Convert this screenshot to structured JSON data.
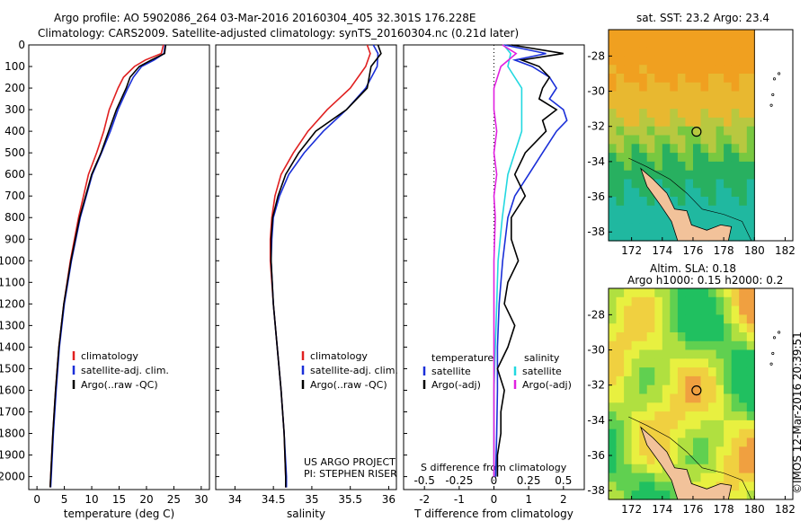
{
  "header": {
    "title_line1": "Argo profile: AO 5902086_264 03-Mar-2016 20160304_405 32.301S 176.228E",
    "title_line2": "Climatology: CARS2009. Satellite-adjusted climatology: synTS_20160304.nc (0.21d later)"
  },
  "credit": "©IMOS 12-Mar-2016 20:39:51",
  "project": {
    "line1": "US ARGO PROJECT",
    "line2": "PI: STEPHEN RISER"
  },
  "colors": {
    "climatology": "#e02020",
    "satellite": "#1a2fd8",
    "argo": "#000000",
    "sat_s": "#22d8e0",
    "argo_s": "#e020e0"
  },
  "chart_data": [
    {
      "id": "temperature",
      "type": "line",
      "xlabel": "temperature (deg C)",
      "ylabel": "",
      "xlim": [
        -1.5,
        31.5
      ],
      "ylim": [
        2060,
        0
      ],
      "xticks": [
        0,
        5,
        10,
        15,
        20,
        25,
        30
      ],
      "yticks": [
        0,
        100,
        200,
        300,
        400,
        500,
        600,
        700,
        800,
        900,
        1000,
        1100,
        1200,
        1300,
        1400,
        1500,
        1600,
        1700,
        1800,
        1900,
        2000
      ],
      "legend": [
        "climatology",
        "satellite-adj. clim.",
        "Argo(..raw -QC)"
      ],
      "series": [
        {
          "name": "climatology",
          "color": "#e02020",
          "y": [
            0,
            40,
            70,
            100,
            150,
            200,
            300,
            400,
            500,
            600,
            800,
            1000,
            1200,
            1400,
            1600,
            1800,
            2000,
            2050
          ],
          "x": [
            23.1,
            22.7,
            19.8,
            17.8,
            15.8,
            14.8,
            13.2,
            12.2,
            10.9,
            9.4,
            7.6,
            6.1,
            4.9,
            4.0,
            3.4,
            2.9,
            2.5,
            2.4
          ]
        },
        {
          "name": "satellite-adj. clim.",
          "color": "#1a2fd8",
          "y": [
            0,
            40,
            70,
            100,
            150,
            200,
            300,
            400,
            500,
            600,
            800,
            1000,
            1200,
            1400,
            1600,
            1800,
            2000,
            2050
          ],
          "x": [
            23.4,
            23.2,
            21.4,
            19.1,
            17.6,
            16.6,
            14.8,
            13.4,
            11.8,
            10.1,
            7.9,
            6.3,
            5.0,
            4.1,
            3.5,
            3.0,
            2.6,
            2.5
          ]
        },
        {
          "name": "Argo(..raw -QC)",
          "color": "#000000",
          "y": [
            0,
            40,
            70,
            100,
            150,
            200,
            300,
            400,
            500,
            600,
            800,
            1000,
            1200,
            1400,
            1600,
            1800,
            2000,
            2050
          ],
          "x": [
            23.5,
            23.3,
            20.9,
            18.7,
            17.0,
            16.3,
            14.5,
            13.1,
            11.7,
            10.0,
            7.8,
            6.2,
            4.9,
            4.0,
            3.4,
            2.9,
            2.5,
            2.4
          ]
        }
      ]
    },
    {
      "id": "salinity",
      "type": "line",
      "xlabel": "salinity",
      "ylabel": "",
      "xlim": [
        33.75,
        36.1
      ],
      "ylim": [
        2060,
        0
      ],
      "xticks": [
        34,
        34.5,
        35,
        35.5,
        36
      ],
      "xtick_labels": [
        "34",
        "34.5",
        "35",
        "35.5",
        "36"
      ],
      "legend": [
        "climatology",
        "satellite-adj. clim.",
        "Argo(..raw -QC)"
      ],
      "series": [
        {
          "name": "climatology",
          "color": "#e02020",
          "y": [
            0,
            40,
            100,
            200,
            300,
            400,
            500,
            600,
            700,
            800,
            900,
            1000,
            1200,
            1400,
            1600,
            1800,
            2000,
            2050
          ],
          "x": [
            35.72,
            35.76,
            35.7,
            35.5,
            35.2,
            34.95,
            34.76,
            34.6,
            34.52,
            34.48,
            34.46,
            34.46,
            34.5,
            34.55,
            34.6,
            34.64,
            34.66,
            34.66
          ]
        },
        {
          "name": "satellite-adj. clim.",
          "color": "#1a2fd8",
          "y": [
            0,
            40,
            100,
            200,
            300,
            400,
            500,
            600,
            700,
            800,
            900,
            1000,
            1200,
            1400,
            1600,
            1800,
            2000,
            2050
          ],
          "x": [
            35.8,
            35.86,
            35.85,
            35.7,
            35.45,
            35.15,
            34.9,
            34.7,
            34.58,
            34.5,
            34.48,
            34.47,
            34.5,
            34.55,
            34.6,
            34.64,
            34.67,
            34.67
          ]
        },
        {
          "name": "Argo(..raw -QC)",
          "color": "#000000",
          "y": [
            0,
            40,
            100,
            200,
            300,
            400,
            500,
            600,
            700,
            800,
            900,
            1000,
            1200,
            1400,
            1600,
            1800,
            2000,
            2050
          ],
          "x": [
            35.86,
            35.9,
            35.77,
            35.72,
            35.45,
            35.05,
            34.83,
            34.66,
            34.56,
            34.49,
            34.47,
            34.47,
            34.5,
            34.55,
            34.6,
            34.64,
            34.66,
            34.66
          ]
        }
      ]
    },
    {
      "id": "difference",
      "type": "line",
      "xlabel": "T difference from climatology",
      "ylabel": "",
      "top_label": "S difference from climatology",
      "xlim": [
        -2.6,
        2.6
      ],
      "ylim": [
        2060,
        0
      ],
      "xticks": [
        -2,
        -1,
        0,
        1,
        2
      ],
      "xtick_labels": [
        "-2",
        "-1",
        "0",
        "1",
        "2"
      ],
      "sticks": [
        -0.5,
        -0.25,
        0,
        0.25,
        0.5
      ],
      "stick_labels": [
        "-0.5",
        "-0.25",
        "0",
        "0.25",
        "0.5"
      ],
      "legend_temperature": [
        "temperature",
        "satellite",
        "Argo(-adj)"
      ],
      "legend_salinity": [
        "salinity",
        "satellite",
        "Argo(-adj)"
      ],
      "series": [
        {
          "name": "satellite",
          "group": "temperature",
          "color": "#1a2fd8",
          "y": [
            0,
            40,
            70,
            100,
            150,
            200,
            250,
            300,
            350,
            400,
            500,
            600,
            700,
            800,
            1000,
            1200,
            1400,
            1600,
            1800,
            2000
          ],
          "x": [
            0.3,
            1.5,
            0.6,
            1.1,
            1.6,
            1.8,
            1.6,
            2.0,
            2.1,
            1.8,
            1.4,
            1.0,
            0.6,
            0.4,
            0.25,
            0.15,
            0.1,
            0.1,
            0.08,
            0.05
          ]
        },
        {
          "name": "Argo(-adj)",
          "group": "temperature",
          "color": "#000000",
          "y": [
            0,
            40,
            70,
            100,
            150,
            200,
            250,
            300,
            350,
            400,
            500,
            600,
            700,
            800,
            900,
            1000,
            1100,
            1200,
            1300,
            1400,
            1500,
            1600,
            1700,
            1800,
            1900,
            2000
          ],
          "x": [
            0.5,
            2.0,
            0.8,
            1.3,
            1.6,
            1.4,
            1.3,
            1.8,
            1.4,
            1.5,
            0.9,
            0.6,
            0.9,
            0.5,
            0.5,
            0.7,
            0.4,
            0.3,
            0.6,
            0.4,
            0.1,
            0.3,
            0.2,
            0.2,
            0.1,
            0.1
          ]
        },
        {
          "name": "satellite",
          "group": "salinity",
          "color": "#22d8e0",
          "y": [
            0,
            40,
            100,
            200,
            300,
            400,
            500,
            600,
            800,
            1000,
            1200,
            1400,
            1600,
            1800,
            2000
          ],
          "x": [
            0.07,
            0.12,
            0.1,
            0.2,
            0.2,
            0.2,
            0.15,
            0.1,
            0.06,
            0.03,
            0.02,
            0.01,
            0.0,
            0.0,
            0.0
          ]
        },
        {
          "name": "Argo(-adj)",
          "group": "salinity",
          "color": "#e020e0",
          "y": [
            0,
            40,
            100,
            200,
            300,
            400,
            500,
            600,
            700,
            800,
            1000,
            1200,
            1400,
            1600,
            1800,
            2000
          ],
          "x": [
            0.06,
            0.16,
            0.05,
            0.0,
            0.0,
            0.02,
            0.0,
            0.02,
            0.0,
            0.01,
            0.0,
            0.0,
            0.0,
            0.0,
            0.0,
            0.0
          ]
        }
      ]
    },
    {
      "id": "sst-map",
      "type": "heatmap",
      "title": "sat. SST: 23.2 Argo: 23.4",
      "xlim": [
        170.5,
        182.5
      ],
      "ylim": [
        -38.5,
        -26.5
      ],
      "xticks": [
        172,
        174,
        176,
        178,
        180,
        182
      ],
      "yticks": [
        -28,
        -30,
        -32,
        -34,
        -36,
        -38
      ],
      "profile_lon": 176.228,
      "profile_lat": -32.301
    },
    {
      "id": "sla-map",
      "type": "heatmap",
      "title_line1": "Altim. SLA: 0.18",
      "title_line2": "Argo h1000: 0.15 h2000: 0.2",
      "xlim": [
        170.5,
        182.5
      ],
      "ylim": [
        -38.5,
        -26.5
      ],
      "xticks": [
        172,
        174,
        176,
        178,
        180,
        182
      ],
      "yticks": [
        -28,
        -30,
        -32,
        -34,
        -36,
        -38
      ],
      "profile_lon": 176.228,
      "profile_lat": -32.301
    }
  ]
}
